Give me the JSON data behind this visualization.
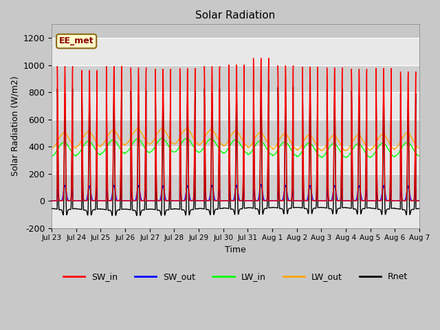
{
  "title": "Solar Radiation",
  "ylabel": "Solar Radiation (W/m2)",
  "xlabel": "Time",
  "ylim": [
    -200,
    1300
  ],
  "yticks": [
    -200,
    0,
    200,
    400,
    600,
    800,
    1000,
    1200
  ],
  "n_days": 15,
  "xtick_labels": [
    "Jul 23",
    "Jul 24",
    "Jul 25",
    "Jul 26",
    "Jul 27",
    "Jul 28",
    "Jul 29",
    "Jul 30",
    "Jul 31",
    "Aug 1",
    "Aug 2",
    "Aug 3",
    "Aug 4",
    "Aug 5",
    "Aug 6",
    "Aug 7"
  ],
  "annotation_text": "EE_met",
  "colors": {
    "SW_in": "#ff0000",
    "SW_out": "#0000ff",
    "LW_in": "#00ff00",
    "LW_out": "#ffa500",
    "Rnet": "#000000"
  },
  "day_peaks_SW": [
    990,
    960,
    990,
    980,
    970,
    975,
    990,
    1000,
    1050,
    995,
    985,
    980,
    970,
    975,
    950
  ],
  "bg_alternating": [
    "#e8e8e8",
    "#d4d4d4"
  ],
  "line_width": 1.0
}
